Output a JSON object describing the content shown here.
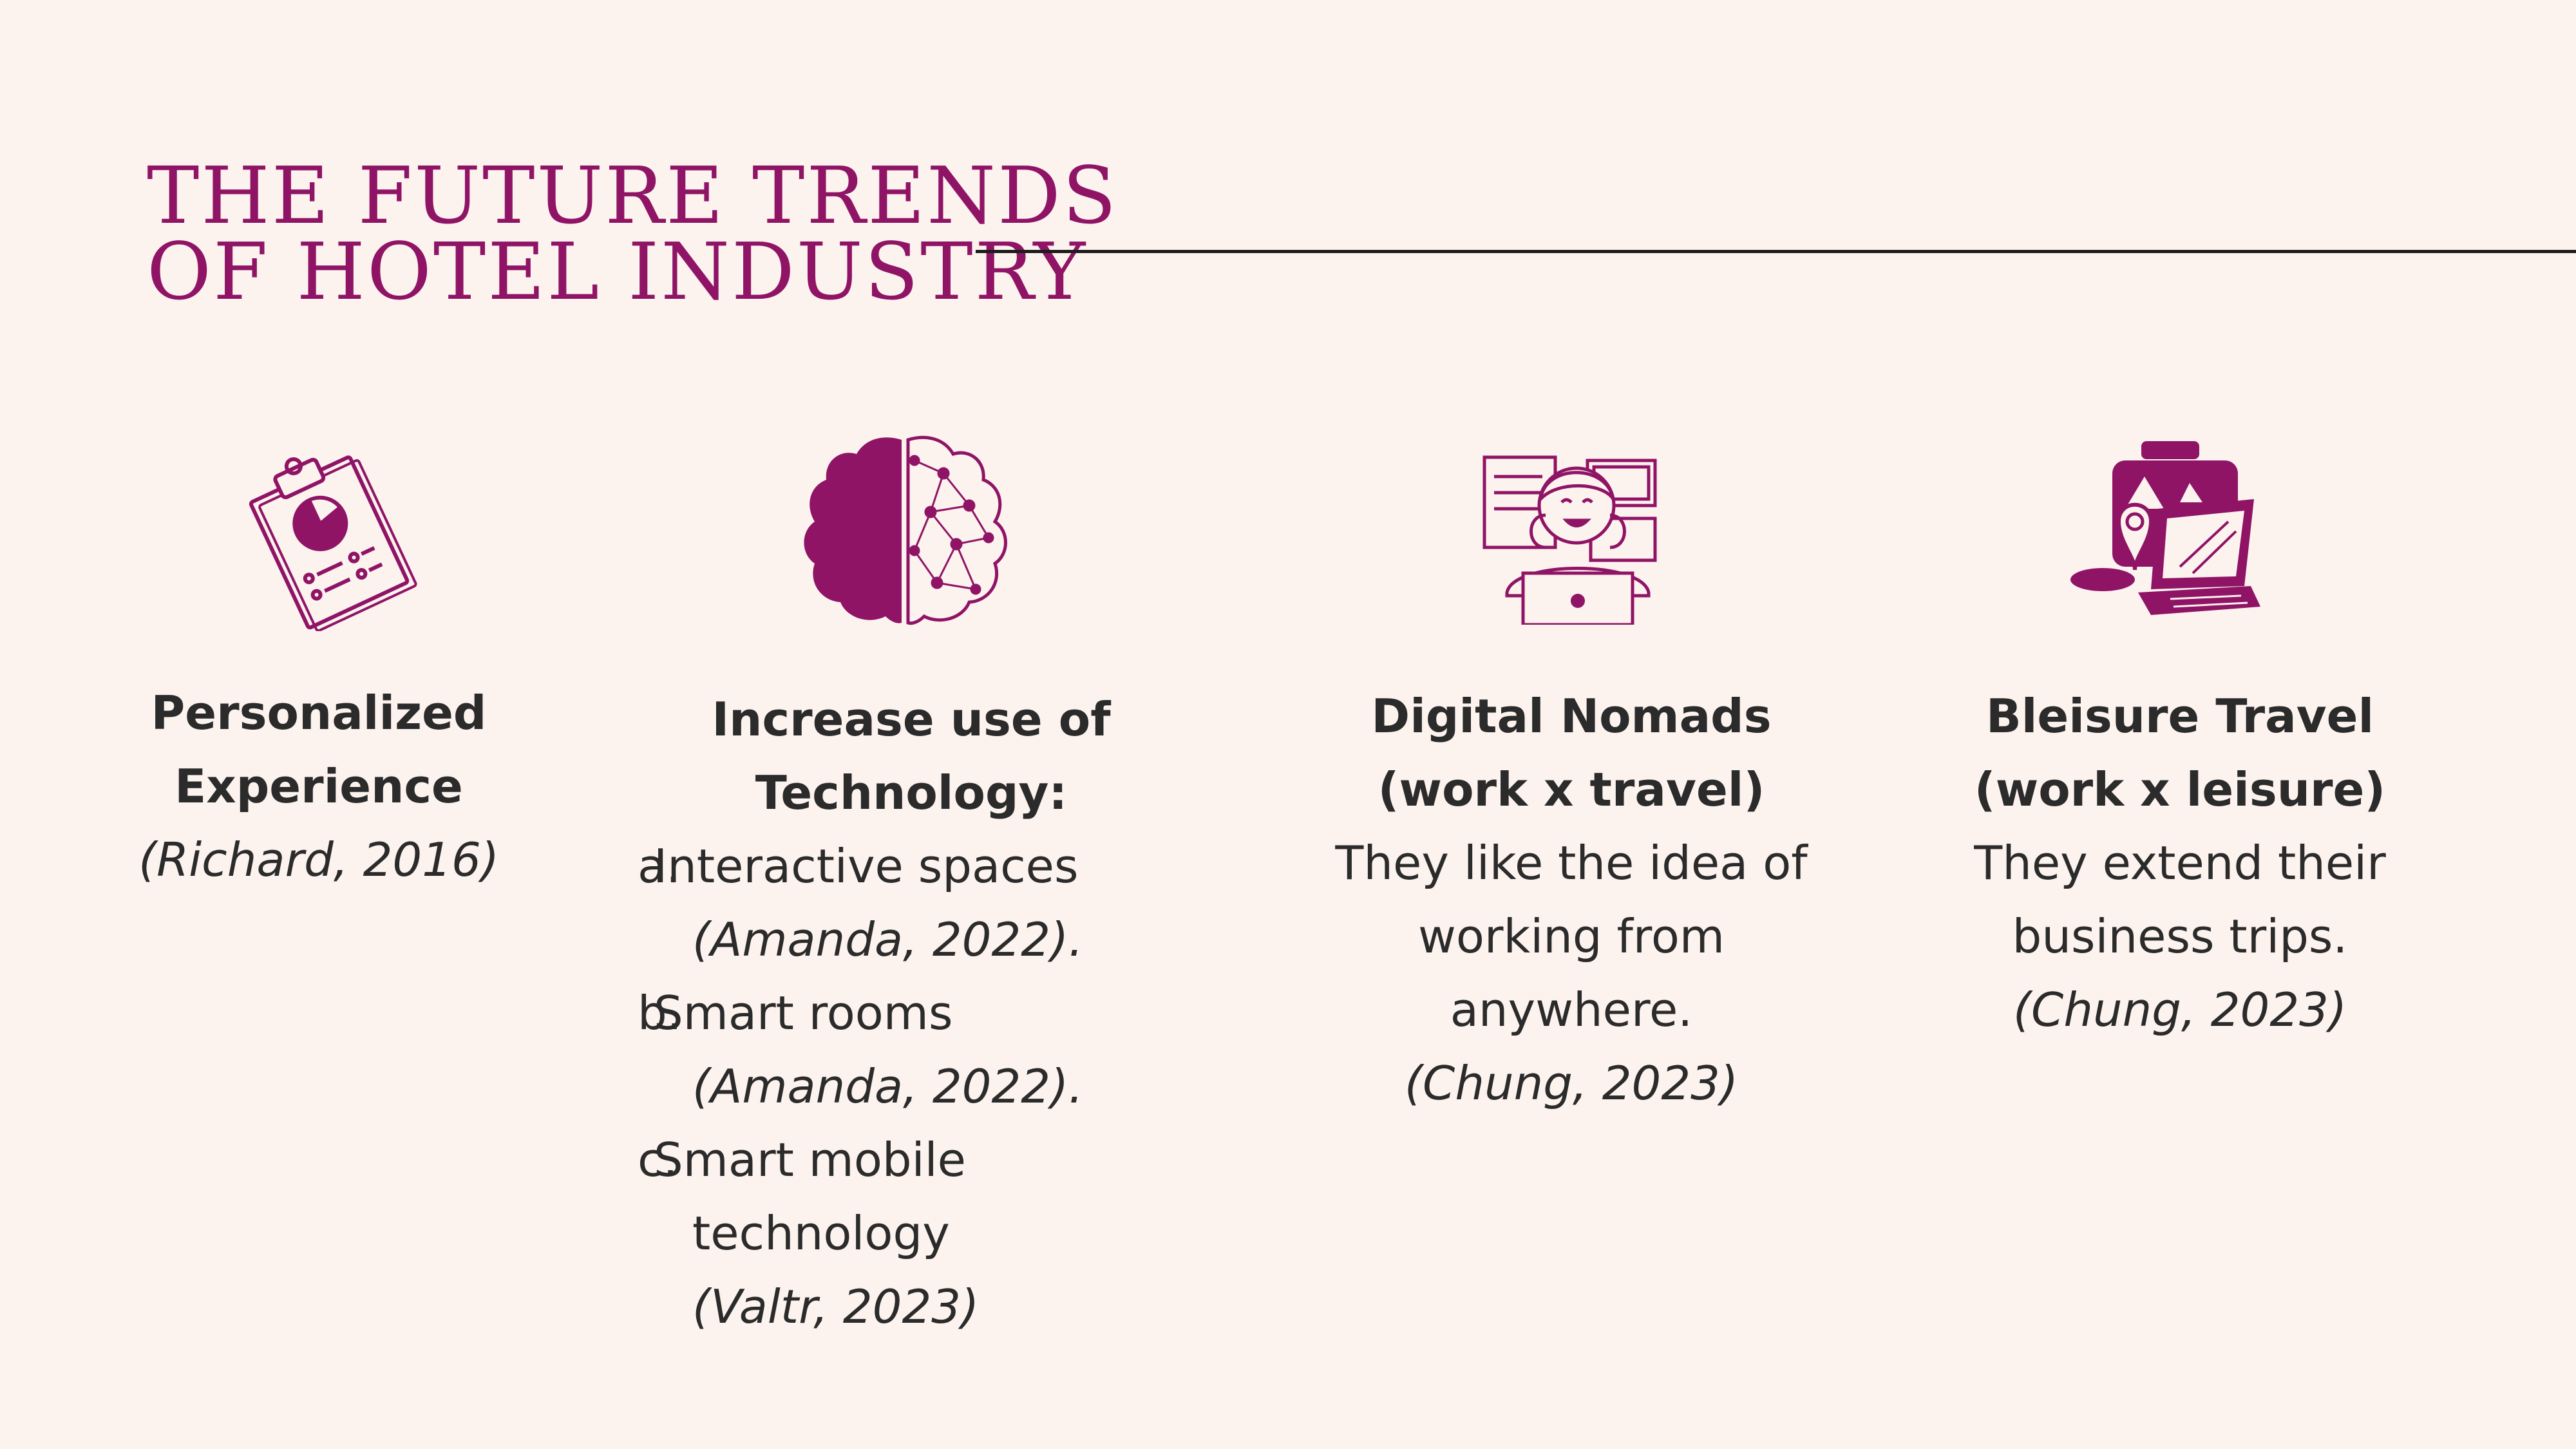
{
  "slide": {
    "title_line1": "THE FUTURE TRENDS",
    "title_line2": "OF HOTEL INDUSTRY"
  },
  "colors": {
    "accent": "#8f1466",
    "background": "#fcf2ee",
    "text": "#2b2b2b"
  },
  "trends": [
    {
      "icon": "clipboard-chart-icon",
      "heading_line1": "Personalized",
      "heading_line2": "Experience",
      "citation": "(Richard, 2016)"
    },
    {
      "icon": "brain-network-icon",
      "heading": "Increase use of Technology:",
      "items": [
        {
          "marker": "a.",
          "line1": "Interactive spaces",
          "citation": "(Amanda, 2022)."
        },
        {
          "marker": "b.",
          "line1": "Smart rooms",
          "citation": "(Amanda, 2022)."
        },
        {
          "marker": "c.",
          "line1": "Smart mobile",
          "line2": "technology",
          "citation": "(Valtr, 2023)"
        }
      ]
    },
    {
      "icon": "remote-worker-laptop-icon",
      "heading_line1": "Digital Nomads",
      "heading_line2": "(work x travel)",
      "body_line1": "They like the idea of",
      "body_line2": "working from",
      "body_line3": "anywhere.",
      "citation": "(Chung, 2023)"
    },
    {
      "icon": "suitcase-laptop-icon",
      "heading_line1": "Bleisure Travel",
      "heading_line2": "(work x leisure)",
      "body_line1": "They extend their",
      "body_line2": "business trips.",
      "citation": "(Chung, 2023)"
    }
  ]
}
